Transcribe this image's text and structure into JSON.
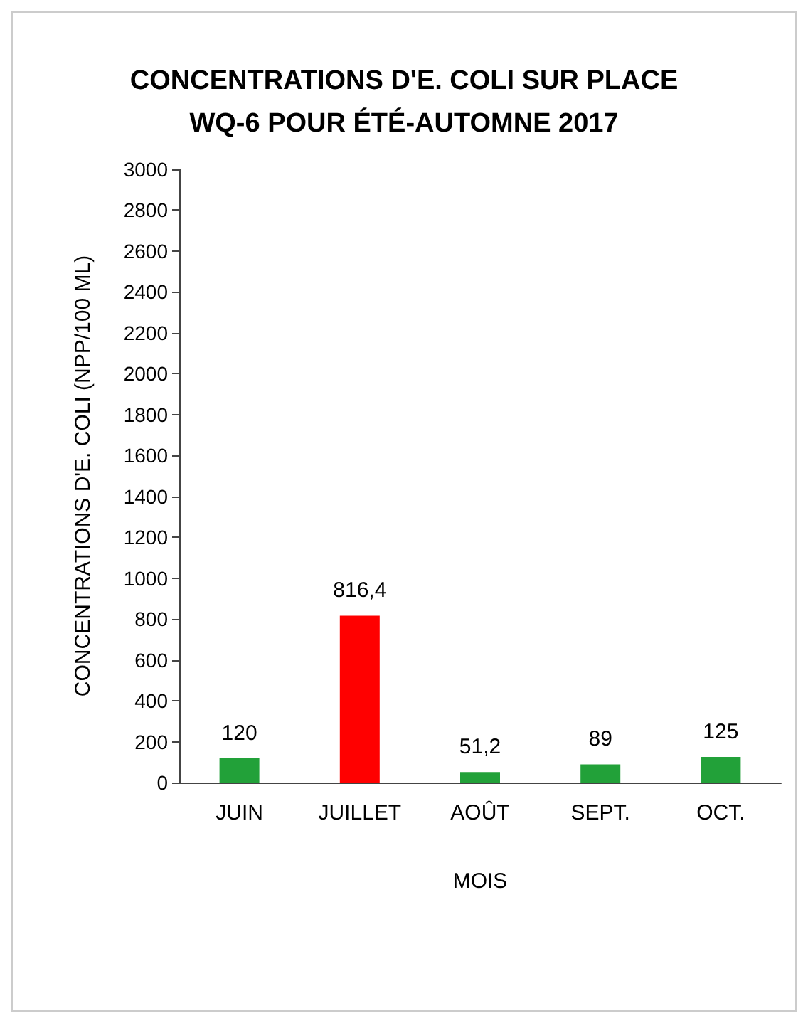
{
  "chart_data": {
    "type": "bar",
    "title": "CONCENTRATIONS D'E. COLI SUR PLACE\nWQ-6 POUR ÉTÉ-AUTOMNE 2017",
    "xlabel": "MOIS",
    "ylabel": "CONCENTRATIONS D'E. COLI (NPP/100 ML)",
    "categories": [
      "JUIN",
      "JUILLET",
      "AOÛT",
      "SEPT.",
      "OCT."
    ],
    "values": [
      120,
      816.4,
      51.2,
      89,
      125
    ],
    "colors": [
      "#22a139",
      "#ff0000",
      "#22a139",
      "#22a139",
      "#22a139"
    ],
    "value_labels": [
      "120",
      "816,4",
      "51,2",
      "89",
      "125"
    ],
    "ylim": [
      0,
      3000
    ],
    "yticks": [
      0,
      200,
      400,
      600,
      800,
      1000,
      1200,
      1400,
      1600,
      1800,
      2000,
      2200,
      2400,
      2600,
      2800,
      3000
    ],
    "grid": false
  }
}
